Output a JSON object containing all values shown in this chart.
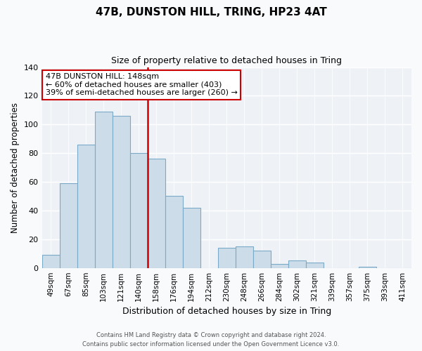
{
  "title": "47B, DUNSTON HILL, TRING, HP23 4AT",
  "subtitle": "Size of property relative to detached houses in Tring",
  "xlabel": "Distribution of detached houses by size in Tring",
  "ylabel": "Number of detached properties",
  "bar_labels": [
    "49sqm",
    "67sqm",
    "85sqm",
    "103sqm",
    "121sqm",
    "140sqm",
    "158sqm",
    "176sqm",
    "194sqm",
    "212sqm",
    "230sqm",
    "248sqm",
    "266sqm",
    "284sqm",
    "302sqm",
    "321sqm",
    "339sqm",
    "357sqm",
    "375sqm",
    "393sqm",
    "411sqm"
  ],
  "bar_values": [
    9,
    59,
    86,
    109,
    106,
    80,
    76,
    50,
    42,
    0,
    14,
    15,
    12,
    3,
    5,
    4,
    0,
    0,
    1,
    0,
    0
  ],
  "bar_color": "#ccdce8",
  "bar_edge_color": "#7aaac8",
  "ylim": [
    0,
    140
  ],
  "yticks": [
    0,
    20,
    40,
    60,
    80,
    100,
    120,
    140
  ],
  "vline_x_index": 6.0,
  "vline_color": "#cc0000",
  "annotation_title": "47B DUNSTON HILL: 148sqm",
  "annotation_line1": "← 60% of detached houses are smaller (403)",
  "annotation_line2": "39% of semi-detached houses are larger (260) →",
  "annotation_box_color": "#ffffff",
  "annotation_border_color": "#cc0000",
  "footer_line1": "Contains HM Land Registry data © Crown copyright and database right 2024.",
  "footer_line2": "Contains public sector information licensed under the Open Government Licence v3.0.",
  "plot_bg_color": "#eef2f7",
  "fig_bg_color": "#f8fafc"
}
